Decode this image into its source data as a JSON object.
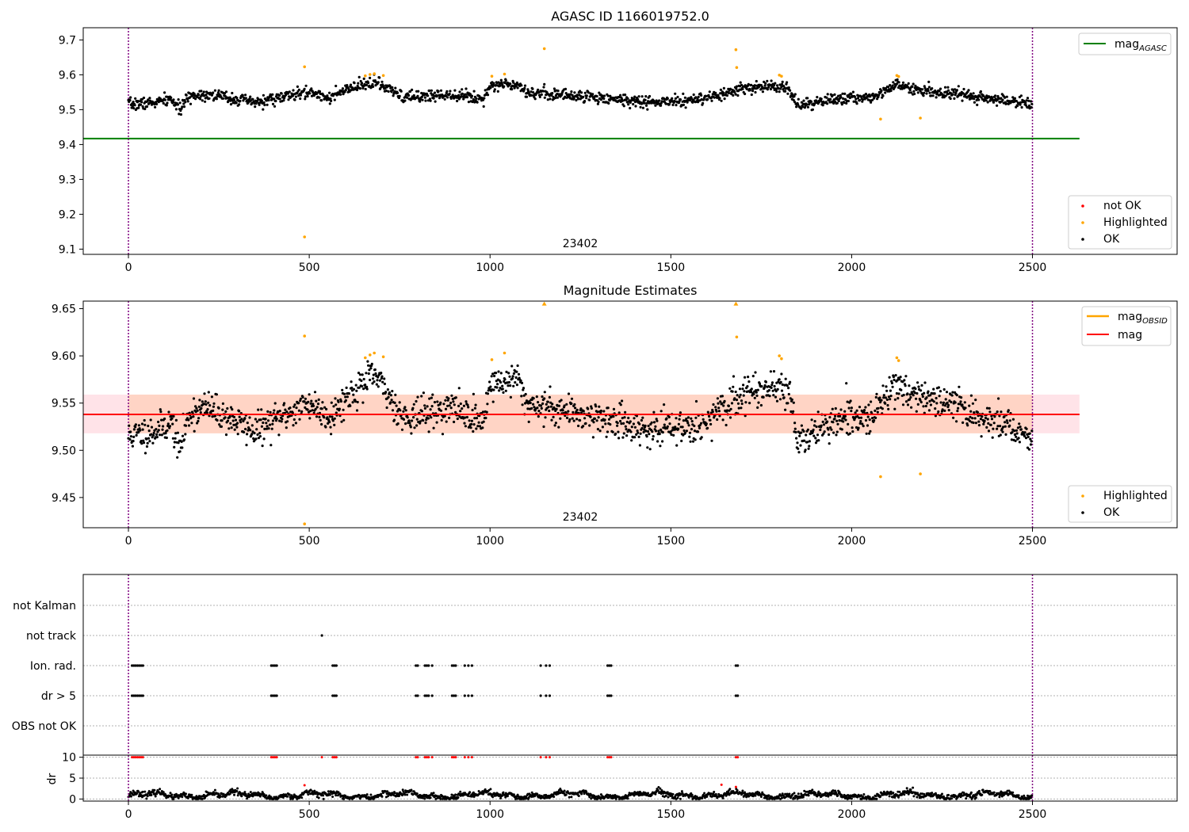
{
  "colors": {
    "ok": "#000000",
    "highlighted": "#ffa500",
    "not_ok": "#ff0000",
    "mag_agasc_line": "#008000",
    "mag_line": "#ff0000",
    "mag_obsid_line": "#ffa500",
    "band_fill": "#ffc0cb",
    "band_overlap_fill": "#ffc8a8",
    "obs_boundary": "#800080"
  },
  "chart_data": [
    {
      "type": "scatter",
      "title": "AGASC ID 1166019752.0",
      "xlim": [
        -125,
        2900
      ],
      "ylim": [
        9.085,
        9.735
      ],
      "x_ticks": [
        0,
        500,
        1000,
        1500,
        2000,
        2500
      ],
      "y_ticks": [
        9.1,
        9.2,
        9.3,
        9.4,
        9.5,
        9.6,
        9.7
      ],
      "obsid_label": "23402",
      "obs_boundaries": [
        0,
        2500
      ],
      "mag_agasc": 9.417,
      "legend_top": {
        "position": "top-right",
        "entries": [
          "mag",
          "AGASC"
        ]
      },
      "legend_bottom": {
        "position": "bottom-right",
        "entries": [
          "not OK",
          "Highlighted",
          "OK"
        ]
      },
      "ok_segments": [
        {
          "x": 0,
          "y": 9.515
        },
        {
          "x": 70,
          "y": 9.52
        },
        {
          "x": 120,
          "y": 9.53
        },
        {
          "x": 140,
          "y": 9.5
        },
        {
          "x": 170,
          "y": 9.54
        },
        {
          "x": 220,
          "y": 9.545
        },
        {
          "x": 300,
          "y": 9.53
        },
        {
          "x": 350,
          "y": 9.52
        },
        {
          "x": 420,
          "y": 9.535
        },
        {
          "x": 500,
          "y": 9.55
        },
        {
          "x": 560,
          "y": 9.535
        },
        {
          "x": 600,
          "y": 9.555
        },
        {
          "x": 680,
          "y": 9.58
        },
        {
          "x": 760,
          "y": 9.535
        },
        {
          "x": 900,
          "y": 9.545
        },
        {
          "x": 980,
          "y": 9.53
        },
        {
          "x": 1000,
          "y": 9.57
        },
        {
          "x": 1080,
          "y": 9.575
        },
        {
          "x": 1100,
          "y": 9.55
        },
        {
          "x": 1300,
          "y": 9.535
        },
        {
          "x": 1450,
          "y": 9.52
        },
        {
          "x": 1600,
          "y": 9.53
        },
        {
          "x": 1700,
          "y": 9.56
        },
        {
          "x": 1800,
          "y": 9.57
        },
        {
          "x": 1830,
          "y": 9.555
        },
        {
          "x": 1850,
          "y": 9.51
        },
        {
          "x": 1950,
          "y": 9.53
        },
        {
          "x": 2050,
          "y": 9.535
        },
        {
          "x": 2120,
          "y": 9.57
        },
        {
          "x": 2200,
          "y": 9.555
        },
        {
          "x": 2300,
          "y": 9.545
        },
        {
          "x": 2400,
          "y": 9.53
        },
        {
          "x": 2500,
          "y": 9.515
        }
      ],
      "highlighted_points": [
        {
          "x": 487,
          "y": 9.623
        },
        {
          "x": 487,
          "y": 9.135
        },
        {
          "x": 655,
          "y": 9.597
        },
        {
          "x": 668,
          "y": 9.601
        },
        {
          "x": 680,
          "y": 9.603
        },
        {
          "x": 705,
          "y": 9.598
        },
        {
          "x": 1005,
          "y": 9.596
        },
        {
          "x": 1040,
          "y": 9.602
        },
        {
          "x": 1150,
          "y": 9.675
        },
        {
          "x": 1680,
          "y": 9.672
        },
        {
          "x": 1682,
          "y": 9.621
        },
        {
          "x": 1800,
          "y": 9.599
        },
        {
          "x": 1806,
          "y": 9.596
        },
        {
          "x": 2080,
          "y": 9.473
        },
        {
          "x": 2125,
          "y": 9.598
        },
        {
          "x": 2130,
          "y": 9.595
        },
        {
          "x": 2190,
          "y": 9.476
        }
      ]
    },
    {
      "type": "scatter",
      "title": "Magnitude Estimates",
      "xlim": [
        -125,
        2900
      ],
      "ylim": [
        9.418,
        9.658
      ],
      "x_ticks": [
        0,
        500,
        1000,
        1500,
        2000,
        2500
      ],
      "y_ticks": [
        9.45,
        9.5,
        9.55,
        9.6,
        9.65
      ],
      "obsid_label": "23402",
      "obs_boundaries": [
        0,
        2500
      ],
      "mag": 9.538,
      "mag_obsid": 9.538,
      "band": [
        9.518,
        9.559
      ],
      "legend_top": {
        "position": "top-right",
        "entries": [
          "mag",
          "OBSID",
          "mag"
        ]
      },
      "legend_bottom": {
        "position": "bottom-right",
        "entries": [
          "Highlighted",
          "OK"
        ]
      },
      "highlighted_points": [
        {
          "x": 487,
          "y": 9.621
        },
        {
          "x": 487,
          "y": 9.422
        },
        {
          "x": 655,
          "y": 9.598
        },
        {
          "x": 668,
          "y": 9.601
        },
        {
          "x": 680,
          "y": 9.603
        },
        {
          "x": 705,
          "y": 9.599
        },
        {
          "x": 1005,
          "y": 9.596
        },
        {
          "x": 1040,
          "y": 9.603
        },
        {
          "x": 1150,
          "y": 9.655
        },
        {
          "x": 1680,
          "y": 9.655
        },
        {
          "x": 1682,
          "y": 9.62
        },
        {
          "x": 1800,
          "y": 9.6
        },
        {
          "x": 1806,
          "y": 9.597
        },
        {
          "x": 2080,
          "y": 9.472
        },
        {
          "x": 2125,
          "y": 9.598
        },
        {
          "x": 2130,
          "y": 9.595
        },
        {
          "x": 2190,
          "y": 9.475
        }
      ]
    },
    {
      "type": "scatter",
      "title": "",
      "xlim": [
        -125,
        2900
      ],
      "x_ticks": [
        0,
        500,
        1000,
        1500,
        2000,
        2500
      ],
      "obs_boundaries": [
        0,
        2500
      ],
      "flag_categories": [
        "not Kalman",
        "not track",
        "Ion. rad.",
        "dr > 5",
        "OBS not OK"
      ],
      "flag_points": {
        "not track": [
          535
        ],
        "Ion. rad.": [
          10,
          15,
          20,
          25,
          30,
          35,
          40,
          395,
          400,
          405,
          410,
          565,
          570,
          575,
          795,
          800,
          820,
          825,
          830,
          840,
          895,
          900,
          905,
          930,
          940,
          950,
          1140,
          1155,
          1165,
          1325,
          1330,
          1335,
          1680,
          1685
        ],
        "dr > 5": [
          10,
          15,
          20,
          25,
          30,
          35,
          40,
          395,
          400,
          405,
          410,
          565,
          570,
          575,
          795,
          800,
          820,
          825,
          830,
          840,
          895,
          900,
          905,
          930,
          940,
          950,
          1140,
          1155,
          1165,
          1325,
          1330,
          1335,
          1680,
          1685
        ]
      },
      "dr_panel": {
        "ylabel": "dr",
        "ylim": [
          -0.5,
          10.5
        ],
        "y_ticks": [
          0,
          5,
          10
        ],
        "clipped_not_ok_x": [
          10,
          15,
          20,
          25,
          30,
          35,
          40,
          395,
          400,
          405,
          410,
          535,
          565,
          570,
          575,
          795,
          800,
          820,
          825,
          830,
          840,
          895,
          900,
          905,
          930,
          940,
          950,
          1140,
          1155,
          1165,
          1325,
          1330,
          1335,
          1680,
          1685
        ],
        "outlier_not_ok": [
          {
            "x": 487,
            "y": 3.3
          },
          {
            "x": 1640,
            "y": 3.4
          },
          {
            "x": 1680,
            "y": 2.9
          }
        ]
      }
    }
  ]
}
